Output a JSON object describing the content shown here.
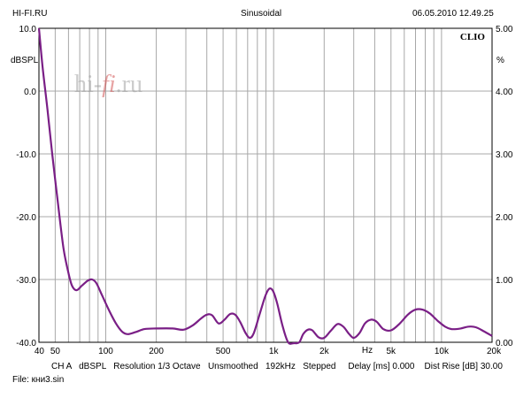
{
  "header": {
    "left": "HI-FI.RU",
    "center": "Sinusoidal",
    "right": "06.05.2010 12.49.25"
  },
  "brand": "CLIO",
  "watermark": {
    "part1": "hi",
    "part2": "-",
    "part3": "fi",
    "part4": ".ru"
  },
  "footer": {
    "settings": "CH A   dBSPL   Resolution 1/3 Octave   Unsmoothed   192kHz   Stepped     Delay [ms] 0.000    Dist Rise [dB] 30.00",
    "file": "File: кни3.sin"
  },
  "colors": {
    "curve": "#7a1f86",
    "grid": "#a8a8a8",
    "frame": "#000000"
  },
  "chart_data": {
    "type": "line",
    "title": "Sinusoidal",
    "x_scale": "log",
    "xlim": [
      40,
      20000
    ],
    "ylim": [
      -40,
      10
    ],
    "y2lim": [
      0,
      5
    ],
    "ylabel": "dBSPL",
    "y2label": "%",
    "xlabel": "Hz",
    "x_ticks": [
      {
        "v": 40,
        "label": "40"
      },
      {
        "v": 50,
        "label": "50"
      },
      {
        "v": 100,
        "label": "100"
      },
      {
        "v": 200,
        "label": "200"
      },
      {
        "v": 500,
        "label": "500"
      },
      {
        "v": 1000,
        "label": "1k"
      },
      {
        "v": 2000,
        "label": "2k"
      },
      {
        "v": 5000,
        "label": "5k"
      },
      {
        "v": 10000,
        "label": "10k"
      },
      {
        "v": 20000,
        "label": "20k"
      }
    ],
    "y_ticks": [
      {
        "v": 10,
        "label": "10.0"
      },
      {
        "v": 0,
        "label": "0.0"
      },
      {
        "v": -10,
        "label": "-10.0"
      },
      {
        "v": -20,
        "label": "-20.0"
      },
      {
        "v": -30,
        "label": "-30.0"
      },
      {
        "v": -40,
        "label": "-40.0"
      }
    ],
    "y2_ticks": [
      {
        "v": 5,
        "label": "5.00"
      },
      {
        "v": 4,
        "label": "4.00"
      },
      {
        "v": 3,
        "label": "3.00"
      },
      {
        "v": 2,
        "label": "2.00"
      },
      {
        "v": 1,
        "label": "1.00"
      },
      {
        "v": 0,
        "label": "0.00"
      }
    ],
    "grid": true,
    "series": [
      {
        "points": [
          [
            40,
            10
          ],
          [
            42,
            4
          ],
          [
            45,
            -3
          ],
          [
            48,
            -10
          ],
          [
            52,
            -18
          ],
          [
            56,
            -25
          ],
          [
            60,
            -29
          ],
          [
            63,
            -31
          ],
          [
            67,
            -31.7
          ],
          [
            72,
            -31
          ],
          [
            78,
            -30.2
          ],
          [
            83,
            -30
          ],
          [
            88,
            -30.6
          ],
          [
            95,
            -32.5
          ],
          [
            105,
            -35
          ],
          [
            115,
            -37
          ],
          [
            125,
            -38.3
          ],
          [
            135,
            -38.7
          ],
          [
            150,
            -38.4
          ],
          [
            170,
            -37.9
          ],
          [
            200,
            -37.8
          ],
          [
            250,
            -37.8
          ],
          [
            290,
            -38
          ],
          [
            330,
            -37.3
          ],
          [
            370,
            -36.2
          ],
          [
            400,
            -35.6
          ],
          [
            430,
            -35.7
          ],
          [
            470,
            -37
          ],
          [
            510,
            -36.4
          ],
          [
            550,
            -35.5
          ],
          [
            590,
            -35.6
          ],
          [
            630,
            -36.7
          ],
          [
            680,
            -38.5
          ],
          [
            720,
            -39.3
          ],
          [
            760,
            -38.6
          ],
          [
            820,
            -35.8
          ],
          [
            890,
            -32.7
          ],
          [
            940,
            -31.5
          ],
          [
            990,
            -31.8
          ],
          [
            1050,
            -33.8
          ],
          [
            1130,
            -37.4
          ],
          [
            1220,
            -40
          ],
          [
            1320,
            -40.8
          ],
          [
            1420,
            -40
          ],
          [
            1500,
            -38.7
          ],
          [
            1600,
            -38
          ],
          [
            1700,
            -38.1
          ],
          [
            1850,
            -39.2
          ],
          [
            2000,
            -39.3
          ],
          [
            2200,
            -38.1
          ],
          [
            2400,
            -37.1
          ],
          [
            2600,
            -37.5
          ],
          [
            2800,
            -38.6
          ],
          [
            3000,
            -39.3
          ],
          [
            3250,
            -38.5
          ],
          [
            3500,
            -37
          ],
          [
            3800,
            -36.4
          ],
          [
            4100,
            -36.7
          ],
          [
            4500,
            -37.9
          ],
          [
            5000,
            -38.1
          ],
          [
            5600,
            -37.1
          ],
          [
            6300,
            -35.6
          ],
          [
            7000,
            -34.8
          ],
          [
            7700,
            -34.8
          ],
          [
            8500,
            -35.4
          ],
          [
            9500,
            -36.6
          ],
          [
            10500,
            -37.5
          ],
          [
            11500,
            -37.9
          ],
          [
            13000,
            -37.8
          ],
          [
            14500,
            -37.5
          ],
          [
            16000,
            -37.6
          ],
          [
            18000,
            -38.3
          ],
          [
            20000,
            -39
          ]
        ]
      }
    ]
  }
}
